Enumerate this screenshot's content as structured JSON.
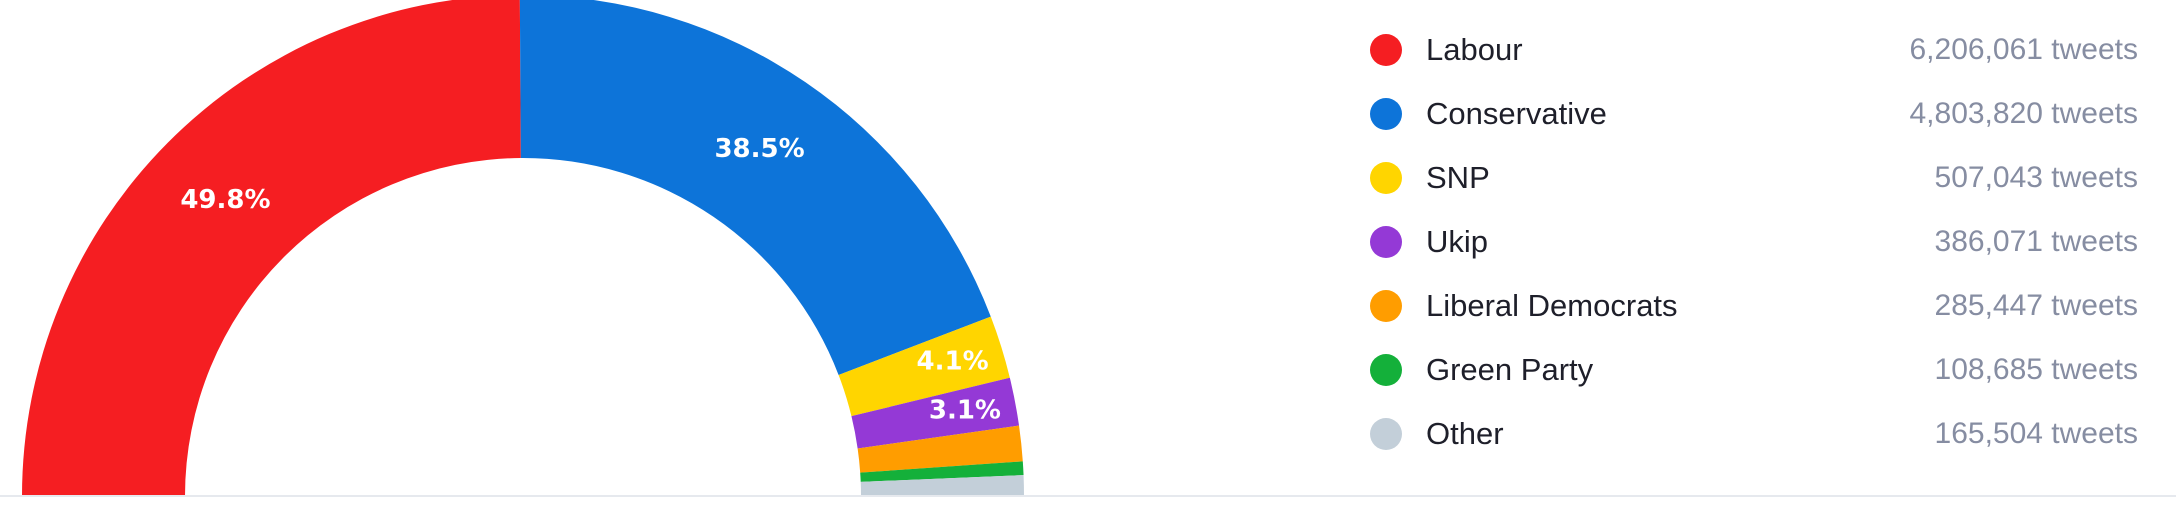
{
  "chart_data": {
    "type": "pie",
    "variant": "semi-donut",
    "unit": "tweets",
    "legend_position": "right",
    "slices": [
      {
        "name": "Labour",
        "value": 6206061,
        "value_label": "6,206,061 tweets",
        "percent_label": "49.8%",
        "color": "#f51e22"
      },
      {
        "name": "Conservative",
        "value": 4803820,
        "value_label": "4,803,820 tweets",
        "percent_label": "38.5%",
        "color": "#0d74d9"
      },
      {
        "name": "SNP",
        "value": 507043,
        "value_label": "507,043 tweets",
        "percent_label": "4.1%",
        "color": "#ffd500"
      },
      {
        "name": "Ukip",
        "value": 386071,
        "value_label": "386,071 tweets",
        "percent_label": "3.1%",
        "color": "#9439d6"
      },
      {
        "name": "Liberal Democrats",
        "value": 285447,
        "value_label": "285,447 tweets",
        "percent_label": "",
        "color": "#ff9d00"
      },
      {
        "name": "Green Party",
        "value": 108685,
        "value_label": "108,685 tweets",
        "percent_label": "",
        "color": "#14b03a"
      },
      {
        "name": "Other",
        "value": 165504,
        "value_label": "165,504 tweets",
        "percent_label": "",
        "color": "#c3cfd9"
      }
    ]
  }
}
